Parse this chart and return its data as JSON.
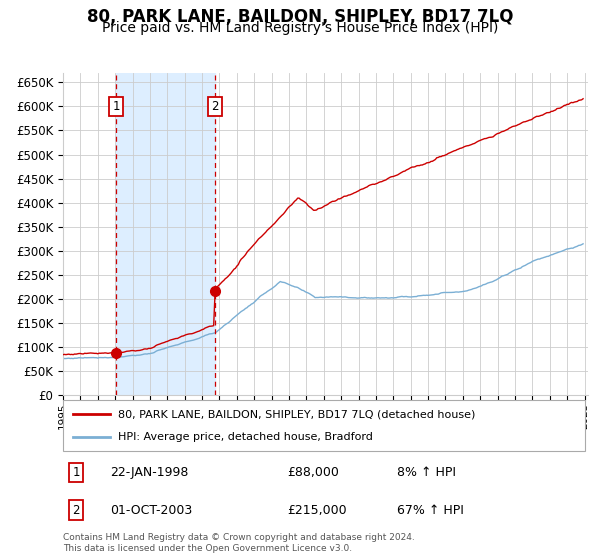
{
  "title": "80, PARK LANE, BAILDON, SHIPLEY, BD17 7LQ",
  "subtitle": "Price paid vs. HM Land Registry's House Price Index (HPI)",
  "title_fontsize": 12,
  "subtitle_fontsize": 10,
  "legend_line1": "80, PARK LANE, BAILDON, SHIPLEY, BD17 7LQ (detached house)",
  "legend_line2": "HPI: Average price, detached house, Bradford",
  "annotation1_label": "1",
  "annotation1_date": "22-JAN-1998",
  "annotation1_price": "£88,000",
  "annotation1_hpi": "8% ↑ HPI",
  "annotation2_label": "2",
  "annotation2_date": "01-OCT-2003",
  "annotation2_price": "£215,000",
  "annotation2_hpi": "67% ↑ HPI",
  "footer": "Contains HM Land Registry data © Crown copyright and database right 2024.\nThis data is licensed under the Open Government Licence v3.0.",
  "red_color": "#cc0000",
  "blue_color": "#7bafd4",
  "background_color": "#ffffff",
  "grid_color": "#cccccc",
  "shading_color": "#ddeeff",
  "sale1_year": 1998.06,
  "sale1_value": 88000,
  "sale2_year": 2003.75,
  "sale2_value": 215000,
  "ylim": [
    0,
    670000
  ],
  "yticks": [
    0,
    50000,
    100000,
    150000,
    200000,
    250000,
    300000,
    350000,
    400000,
    450000,
    500000,
    550000,
    600000,
    650000
  ],
  "start_year": 1995,
  "end_year": 2025
}
